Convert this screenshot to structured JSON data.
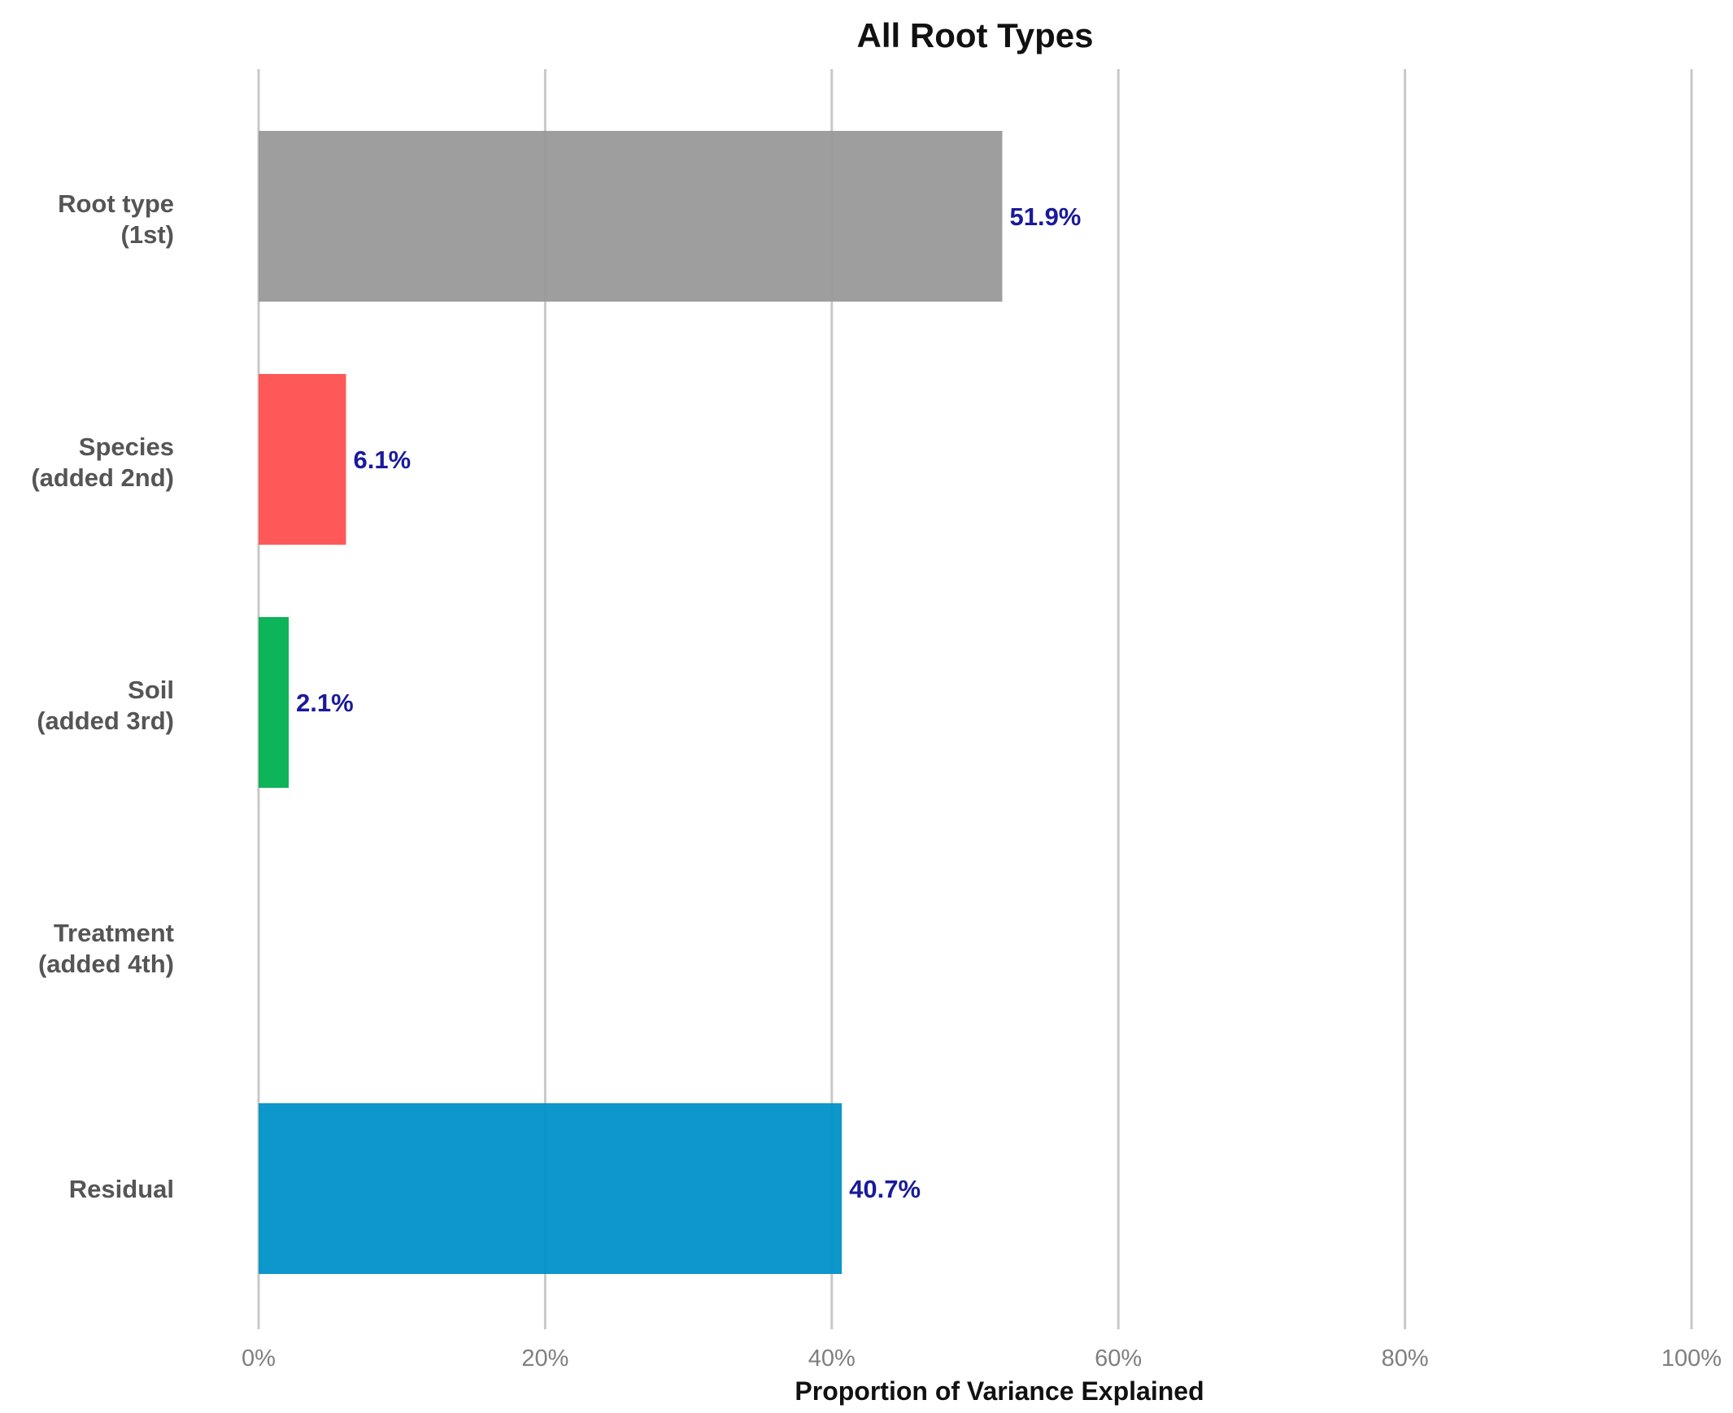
{
  "chart_data": {
    "type": "bar",
    "orientation": "horizontal",
    "title": "All Root Types",
    "xlabel": "Proportion of Variance Explained",
    "ylabel": "",
    "xlim": [
      0,
      100
    ],
    "x_ticks": [
      0,
      20,
      40,
      60,
      80,
      100
    ],
    "x_tick_labels": [
      "0%",
      "20%",
      "40%",
      "60%",
      "80%",
      "100%"
    ],
    "grid": "vertical",
    "legend": "none",
    "label_color": "#1a1a9c",
    "categories": [
      {
        "line1": "Root type",
        "line2": "(1st)"
      },
      {
        "line1": "Species",
        "line2": "(added 2nd)"
      },
      {
        "line1": "Soil",
        "line2": "(added 3rd)"
      },
      {
        "line1": "Treatment",
        "line2": "(added 4th)"
      },
      {
        "line1": "Residual",
        "line2": ""
      }
    ],
    "values": [
      51.9,
      6.1,
      2.1,
      null,
      40.7
    ],
    "data_labels": [
      "51.9%",
      "6.1%",
      "2.1%",
      "",
      "40.7%"
    ],
    "colors": [
      "#999999",
      "#ff4f4f",
      "#00b050",
      "#ffffff",
      "#0091c7"
    ]
  }
}
